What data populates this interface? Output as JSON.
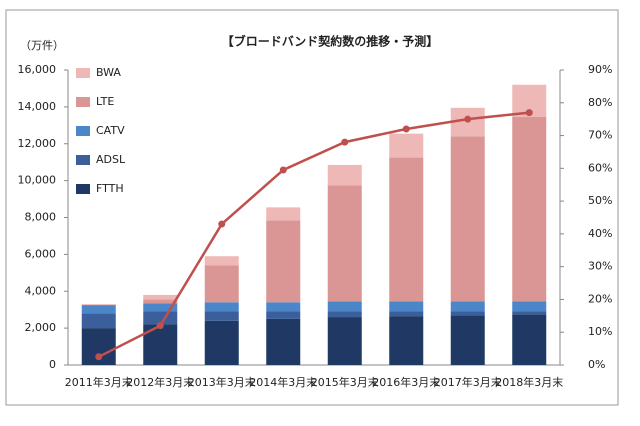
{
  "chart_data": {
    "type": "bar",
    "stacked": true,
    "title": "【ブロードバンド契約数の推移・予測】",
    "y_unit": "（万件）",
    "categories": [
      "2011年3月末",
      "2012年3月末",
      "2013年3月末",
      "2014年3月末",
      "2015年3月末",
      "2016年3月末",
      "2017年3月末",
      "2018年3月末"
    ],
    "series": [
      {
        "name": "FTTH",
        "color": "#1f3864",
        "values": [
          2000,
          2200,
          2400,
          2500,
          2600,
          2650,
          2700,
          2750
        ]
      },
      {
        "name": "ADSL",
        "color": "#3a5f9a",
        "values": [
          800,
          700,
          500,
          400,
          300,
          250,
          200,
          150
        ]
      },
      {
        "name": "CATV",
        "color": "#4a86c8",
        "values": [
          450,
          450,
          500,
          500,
          550,
          550,
          550,
          550
        ]
      },
      {
        "name": "LTE",
        "color": "#d99694",
        "values": [
          0,
          200,
          2000,
          4450,
          6300,
          7800,
          8950,
          10000
        ]
      },
      {
        "name": "BWA",
        "color": "#eeb8b6",
        "values": [
          50,
          250,
          500,
          700,
          1100,
          1300,
          1550,
          1750
        ]
      }
    ],
    "line": {
      "color": "#c0504d",
      "axis": "y2",
      "values": [
        2.5,
        12,
        43,
        59.5,
        68,
        72,
        75,
        77
      ]
    },
    "ylim": [
      0,
      16000
    ],
    "yticks": [
      0,
      {
        "value": 2000,
        "label": "2,000"
      },
      {
        "value": 4000,
        "label": "4,000"
      },
      {
        "value": 6000,
        "label": "6,000"
      },
      {
        "value": 8000,
        "label": "8,000"
      },
      {
        "value": 10000,
        "label": "10,000"
      },
      {
        "value": 12000,
        "label": "12,000"
      },
      {
        "value": 14000,
        "label": "14,000"
      },
      {
        "value": 16000,
        "label": "16,000"
      }
    ],
    "y2lim": [
      0,
      90
    ],
    "y2ticks": [
      {
        "value": 0,
        "label": "0%"
      },
      {
        "value": 10,
        "label": "10%"
      },
      {
        "value": 20,
        "label": "20%"
      },
      {
        "value": 30,
        "label": "30%"
      },
      {
        "value": 40,
        "label": "40%"
      },
      {
        "value": 50,
        "label": "50%"
      },
      {
        "value": 60,
        "label": "60%"
      },
      {
        "value": 70,
        "label": "70%"
      },
      {
        "value": 80,
        "label": "80%"
      },
      {
        "value": 90,
        "label": "90%"
      }
    ],
    "legend": "upper left"
  }
}
